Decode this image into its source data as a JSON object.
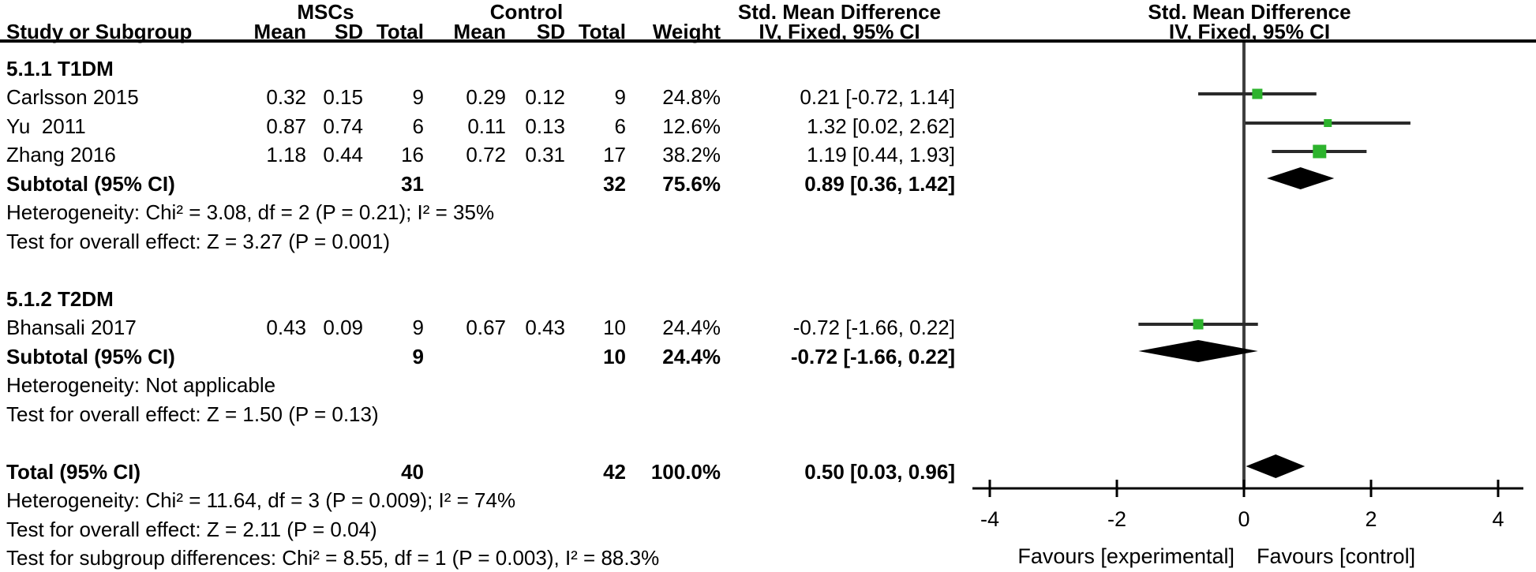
{
  "header": {
    "group_experimental": "MSCs",
    "group_control": "Control",
    "effect_left": "Std. Mean Difference",
    "effect_right": "Std. Mean Difference",
    "method_left": "IV, Fixed, 95% CI",
    "method_right": "IV, Fixed, 95% CI",
    "cols": {
      "study": "Study or Subgroup",
      "mean": "Mean",
      "sd": "SD",
      "total": "Total",
      "weight": "Weight"
    }
  },
  "colors": {
    "marker_green": "#2db32d",
    "diamond_black": "#000000",
    "ci_line": "#2a2a2a",
    "zero_line": "#3f3f3f",
    "axis": "#000000"
  },
  "chart_data": {
    "type": "forest",
    "effect_measure": "Std. Mean Difference",
    "method": "IV, Fixed, 95% CI",
    "xlim": [
      -4,
      4
    ],
    "x_ticks": [
      "-4",
      "-2",
      "0",
      "2",
      "4"
    ],
    "x_tick_values": [
      -4,
      -2,
      0,
      2,
      4
    ],
    "favours_left": "Favours [experimental]",
    "favours_right": "Favours [control]",
    "subgroups": [
      {
        "label": "5.1.1 T1DM",
        "studies": [
          {
            "study": "Carlsson 2015",
            "msc_mean": "0.32",
            "msc_sd": "0.15",
            "msc_total": "9",
            "ctrl_mean": "0.29",
            "ctrl_sd": "0.12",
            "ctrl_total": "9",
            "weight": "24.8%",
            "weight_value": 24.8,
            "smd": 0.21,
            "ci_low": -0.72,
            "ci_high": 1.14,
            "ci_text": "0.21 [-0.72, 1.14]"
          },
          {
            "study": "Yu  2011",
            "msc_mean": "0.87",
            "msc_sd": "0.74",
            "msc_total": "6",
            "ctrl_mean": "0.11",
            "ctrl_sd": "0.13",
            "ctrl_total": "6",
            "weight": "12.6%",
            "weight_value": 12.6,
            "smd": 1.32,
            "ci_low": 0.02,
            "ci_high": 2.62,
            "ci_text": "1.32 [0.02, 2.62]"
          },
          {
            "study": "Zhang 2016",
            "msc_mean": "1.18",
            "msc_sd": "0.44",
            "msc_total": "16",
            "ctrl_mean": "0.72",
            "ctrl_sd": "0.31",
            "ctrl_total": "17",
            "weight": "38.2%",
            "weight_value": 38.2,
            "smd": 1.19,
            "ci_low": 0.44,
            "ci_high": 1.93,
            "ci_text": "1.19 [0.44, 1.93]"
          }
        ],
        "subtotal": {
          "label": "Subtotal (95% CI)",
          "msc_total": "31",
          "ctrl_total": "32",
          "weight": "75.6%",
          "smd": 0.89,
          "ci_low": 0.36,
          "ci_high": 1.42,
          "ci_text": "0.89 [0.36, 1.42]"
        },
        "heterogeneity": "Heterogeneity: Chi² = 3.08, df = 2 (P = 0.21); I² = 35%",
        "overall_effect": "Test for overall effect: Z = 3.27 (P = 0.001)"
      },
      {
        "label": "5.1.2 T2DM",
        "studies": [
          {
            "study": "Bhansali 2017",
            "msc_mean": "0.43",
            "msc_sd": "0.09",
            "msc_total": "9",
            "ctrl_mean": "0.67",
            "ctrl_sd": "0.43",
            "ctrl_total": "10",
            "weight": "24.4%",
            "weight_value": 24.4,
            "smd": -0.72,
            "ci_low": -1.66,
            "ci_high": 0.22,
            "ci_text": "-0.72 [-1.66, 0.22]"
          }
        ],
        "subtotal": {
          "label": "Subtotal (95% CI)",
          "msc_total": "9",
          "ctrl_total": "10",
          "weight": "24.4%",
          "smd": -0.72,
          "ci_low": -1.66,
          "ci_high": 0.22,
          "ci_text": "-0.72 [-1.66, 0.22]"
        },
        "heterogeneity": "Heterogeneity: Not applicable",
        "overall_effect": "Test for overall effect: Z = 1.50 (P = 0.13)"
      }
    ],
    "total": {
      "label": "Total (95% CI)",
      "msc_total": "40",
      "ctrl_total": "42",
      "weight": "100.0%",
      "smd": 0.5,
      "ci_low": 0.03,
      "ci_high": 0.96,
      "ci_text": "0.50 [0.03, 0.96]"
    },
    "footer": [
      "Heterogeneity: Chi² = 11.64, df = 3 (P = 0.009); I² = 74%",
      "Test for overall effect: Z = 2.11 (P = 0.04)",
      "Test for subgroup differences: Chi² = 8.55, df = 1 (P = 0.003), I² = 88.3%"
    ]
  }
}
